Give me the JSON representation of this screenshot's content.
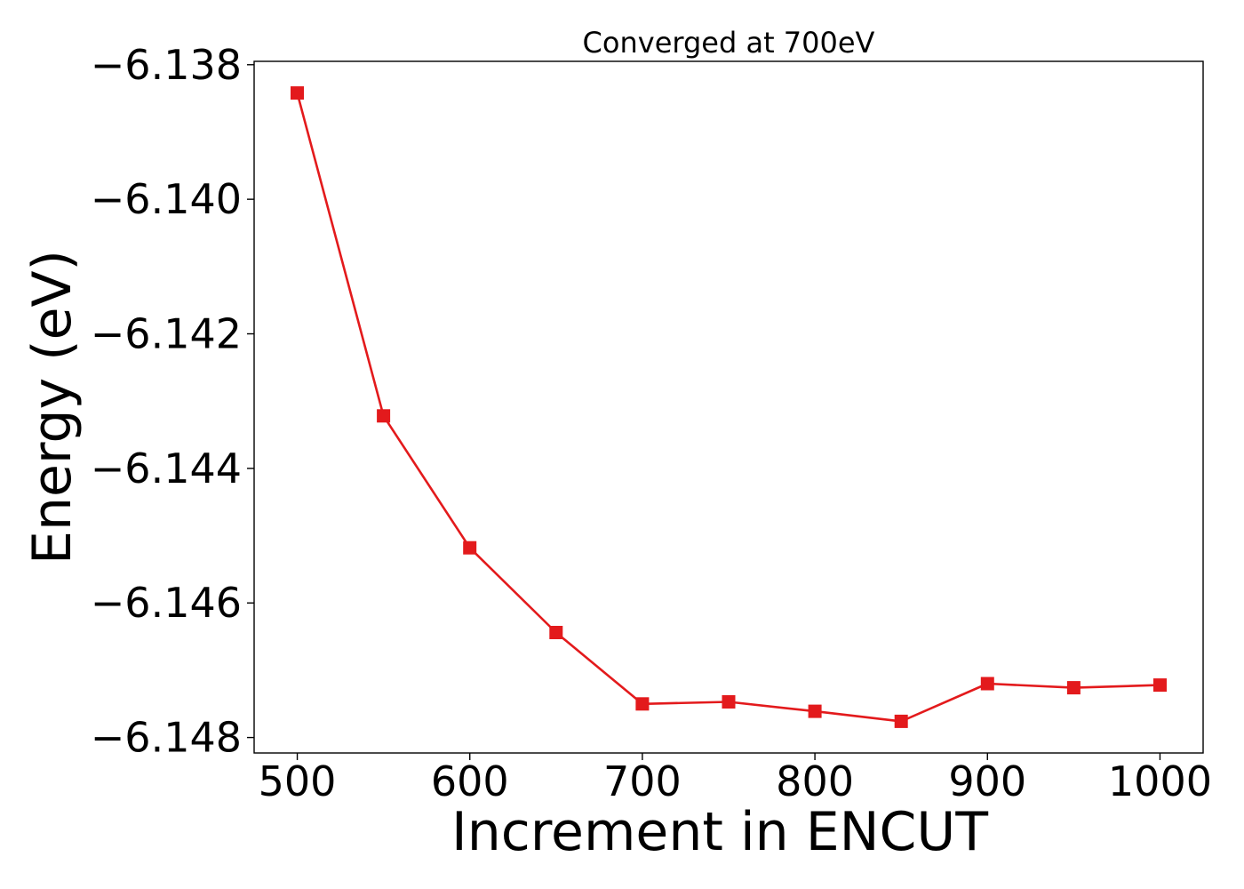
{
  "chart_data": {
    "type": "line",
    "title": "Converged at 700eV",
    "xlabel": "Increment in ENCUT",
    "ylabel": "Energy (eV)",
    "x": [
      500,
      550,
      600,
      650,
      700,
      750,
      800,
      850,
      900,
      950,
      1000
    ],
    "series": [
      {
        "values": [
          -6.13842,
          -6.14322,
          -6.14518,
          -6.14644,
          -6.1475,
          -6.14747,
          -6.14761,
          -6.14776,
          -6.1472,
          -6.14726,
          -6.14722
        ],
        "color": "#e31a1c",
        "marker": "square"
      }
    ],
    "xlim": [
      475,
      1025
    ],
    "ylim": [
      -6.14823,
      -6.13795
    ],
    "xticks": [
      500,
      600,
      700,
      800,
      900,
      1000
    ],
    "xtick_labels": [
      "500",
      "600",
      "700",
      "800",
      "900",
      "1000"
    ],
    "yticks": [
      -6.138,
      -6.14,
      -6.142,
      -6.144,
      -6.146,
      -6.148
    ],
    "ytick_labels": [
      "−6.138",
      "−6.140",
      "−6.142",
      "−6.144",
      "−6.146",
      "−6.148"
    ],
    "grid": false,
    "legend": false
  }
}
